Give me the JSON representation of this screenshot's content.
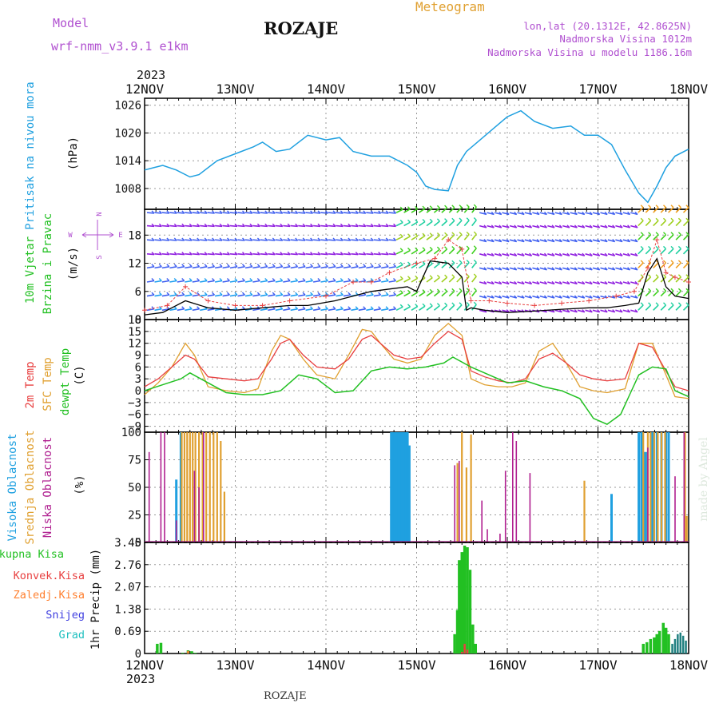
{
  "header": {
    "model_label": "Model",
    "model_value": "wrf-nmm_v3.9.1 e1km",
    "station_title": "ROZAJE",
    "meteogram_label": "Meteogram",
    "lonlat": "lon,lat (20.1312E, 42.8625N)",
    "elevation": "Nadmorska Visina 1012m",
    "model_elevation": "Nadmorska Visina u modelu 1186.16m"
  },
  "footer": {
    "station": "ROZAJE",
    "credit": "made by Angel"
  },
  "colors": {
    "pressure": "#1fa0e0",
    "temp2m": "#e84040",
    "sfc_temp": "#e0a030",
    "dewpoint": "#22c022",
    "cloud_high": "#1fa0e0",
    "cloud_mid": "#e0a030",
    "cloud_low": "#b02090",
    "precip_total": "#22c022",
    "precip_conv": "#e84040",
    "precip_frozen": "#ff8030",
    "precip_snow": "#4040e0",
    "precip_hail": "#20c0c0",
    "label_model": "#b050d0",
    "label_meteogram": "#e0a030"
  },
  "chart_data": [
    {
      "type": "line",
      "id": "pressure",
      "ylabel_left": "Pritisak na nivou mora",
      "ylabel_unit": "(hPa)",
      "year": "2023",
      "x_ticks": [
        "12NOV",
        "13NOV",
        "14NOV",
        "15NOV",
        "16NOV",
        "17NOV",
        "18NOV"
      ],
      "yticks": [
        1008,
        1014,
        1020,
        1026
      ],
      "ylim": [
        1003.5,
        1027.5
      ],
      "xlim": [
        0,
        6
      ],
      "series": [
        {
          "x": [
            0,
            0.1,
            0.2,
            0.35,
            0.5,
            0.6,
            0.8,
            1.0,
            1.2,
            1.3,
            1.45,
            1.6,
            1.8,
            2.0,
            2.15,
            2.3,
            2.5,
            2.7,
            2.9,
            3.0,
            3.1,
            3.2,
            3.35,
            3.45,
            3.55,
            3.7,
            3.85,
            4.0,
            4.15,
            4.3,
            4.5,
            4.7,
            4.85,
            5.0,
            5.15,
            5.3,
            5.45,
            5.55,
            5.65,
            5.75,
            5.85,
            6.0
          ],
          "values": [
            1012,
            1012.5,
            1013,
            1012,
            1010.5,
            1011,
            1014,
            1015.5,
            1017,
            1018,
            1016,
            1016.5,
            1019.5,
            1018.5,
            1019,
            1016,
            1015,
            1015,
            1013,
            1011.5,
            1008.5,
            1007.8,
            1007.5,
            1013,
            1016,
            1018.5,
            1021,
            1023.5,
            1024.8,
            1022.5,
            1021,
            1021.5,
            1019.5,
            1019.5,
            1017.5,
            1012,
            1007,
            1005,
            1008.5,
            1012.5,
            1015,
            1016.5
          ]
        }
      ]
    },
    {
      "type": "line",
      "id": "wind",
      "ylabel_left": "10m Vjetar",
      "ylabel_left2": "Brzina i Pravac",
      "ylabel_unit": "(m/s)",
      "compass": [
        "N",
        "W",
        "E",
        "S"
      ],
      "yticks": [
        0,
        6,
        12,
        18
      ],
      "ylim": [
        0,
        23.5
      ],
      "xlim": [
        0,
        6
      ],
      "series": [
        {
          "name": "speed",
          "x": [
            0,
            0.2,
            0.45,
            0.7,
            1.0,
            1.3,
            1.6,
            1.8,
            2.1,
            2.3,
            2.5,
            2.7,
            2.9,
            3.0,
            3.15,
            3.35,
            3.5,
            3.55,
            3.6,
            3.75,
            4.0,
            4.3,
            4.6,
            4.9,
            5.1,
            5.3,
            5.45,
            5.55,
            5.65,
            5.75,
            5.85,
            6.0
          ],
          "values": [
            1,
            1.5,
            4,
            2.5,
            2,
            2.5,
            3,
            3,
            4,
            5,
            6,
            6.5,
            7,
            6,
            12.5,
            12,
            9,
            2,
            2.5,
            2,
            1.5,
            1.8,
            2.2,
            2.5,
            2.5,
            3,
            3.5,
            10,
            13,
            7,
            5,
            4.5
          ]
        },
        {
          "name": "gust",
          "x": [
            0,
            0.25,
            0.45,
            0.7,
            1.0,
            1.3,
            1.6,
            2.0,
            2.3,
            2.5,
            2.7,
            3.0,
            3.2,
            3.35,
            3.5,
            3.6,
            3.8,
            4.0,
            4.3,
            4.6,
            4.9,
            5.2,
            5.4,
            5.55,
            5.65,
            5.75,
            5.85,
            6.0
          ],
          "values": [
            2,
            3,
            7,
            4,
            3,
            3,
            4,
            5,
            8,
            8,
            10,
            12,
            13,
            17,
            15,
            4,
            4,
            3.5,
            3,
            3.5,
            4,
            5,
            6,
            11,
            17,
            10,
            9,
            8
          ]
        }
      ]
    },
    {
      "type": "line",
      "id": "temperature",
      "ylabel_left": "2m Temp",
      "ylabel_left2": "SFC Temp",
      "ylabel_left3": "dewpt Temp",
      "ylabel_unit": "(C)",
      "yticks": [
        -9,
        -6,
        -3,
        0,
        3,
        6,
        9,
        12,
        15,
        18
      ],
      "ylim": [
        -10.5,
        18
      ],
      "xlim": [
        0,
        6
      ],
      "series": [
        {
          "name": "2m Temp",
          "x": [
            0,
            0.15,
            0.3,
            0.45,
            0.55,
            0.7,
            0.9,
            1.1,
            1.25,
            1.4,
            1.5,
            1.6,
            1.75,
            1.9,
            2.1,
            2.25,
            2.4,
            2.5,
            2.6,
            2.75,
            2.9,
            3.05,
            3.2,
            3.35,
            3.5,
            3.6,
            3.75,
            3.9,
            4.05,
            4.2,
            4.35,
            4.5,
            4.65,
            4.8,
            4.95,
            5.1,
            5.3,
            5.45,
            5.6,
            5.75,
            5.85,
            6.0
          ],
          "values": [
            1,
            3,
            6,
            9,
            8,
            3.5,
            3,
            2.5,
            3,
            8,
            12,
            13,
            9,
            6,
            5.5,
            8,
            13,
            14,
            12,
            9,
            8,
            8.5,
            12,
            15,
            13,
            5,
            3.5,
            2.5,
            2,
            3,
            8,
            9.5,
            7,
            4,
            3,
            2.5,
            3,
            12,
            11,
            5,
            1,
            0
          ]
        },
        {
          "name": "SFC Temp",
          "x": [
            0,
            0.15,
            0.3,
            0.45,
            0.55,
            0.7,
            0.9,
            1.1,
            1.25,
            1.4,
            1.5,
            1.6,
            1.75,
            1.9,
            2.1,
            2.25,
            2.4,
            2.5,
            2.6,
            2.75,
            2.9,
            3.05,
            3.2,
            3.35,
            3.5,
            3.6,
            3.75,
            3.9,
            4.05,
            4.2,
            4.35,
            4.5,
            4.65,
            4.8,
            4.95,
            5.1,
            5.3,
            5.45,
            5.6,
            5.75,
            5.85,
            6.0
          ],
          "values": [
            -1,
            2,
            6,
            12,
            9,
            1,
            0,
            -0.5,
            0.5,
            10,
            14,
            13,
            8,
            4,
            3,
            9,
            15.5,
            15,
            12,
            8,
            7,
            8,
            14,
            17,
            14,
            3,
            1.5,
            1,
            1,
            2,
            10,
            12,
            7,
            1,
            0,
            -0.5,
            0.5,
            12,
            12,
            4,
            -1.5,
            -2
          ]
        },
        {
          "name": "dewpt Temp",
          "x": [
            0,
            0.2,
            0.4,
            0.5,
            0.7,
            0.9,
            1.1,
            1.3,
            1.5,
            1.7,
            1.9,
            2.1,
            2.3,
            2.5,
            2.7,
            2.9,
            3.1,
            3.3,
            3.4,
            3.6,
            3.8,
            4.0,
            4.2,
            4.4,
            4.6,
            4.8,
            4.95,
            5.1,
            5.25,
            5.35,
            5.45,
            5.6,
            5.75,
            5.85,
            6.0
          ],
          "values": [
            0,
            1.5,
            3,
            4.5,
            2,
            -0.5,
            -1,
            -1,
            0,
            4,
            3,
            -0.5,
            0,
            5,
            6,
            5.5,
            6,
            7,
            8.5,
            6,
            4,
            2,
            2.5,
            1,
            0,
            -2,
            -7,
            -8.5,
            -6,
            -1,
            4,
            6,
            5.5,
            0,
            -1.5
          ]
        }
      ]
    },
    {
      "type": "bar",
      "id": "clouds",
      "ylabel_left": "Visoka Oblacnost",
      "ylabel_left2": "Srednja Oblacnost",
      "ylabel_left3": "Niska Oblacnost",
      "ylabel_unit": "(%)",
      "yticks": [
        0,
        25,
        50,
        75,
        100
      ],
      "ylim": [
        0,
        100
      ],
      "xlim": [
        0,
        6
      ],
      "series": [
        {
          "name": "Visoka Oblacnost",
          "x": [
            0.35,
            0.4,
            2.72,
            2.74,
            2.76,
            2.78,
            2.8,
            2.82,
            2.84,
            2.86,
            2.88,
            2.9,
            2.92,
            5.15,
            5.45,
            5.48,
            5.5,
            5.52,
            5.54,
            5.6,
            5.65,
            5.7,
            5.75,
            5.78
          ],
          "values": [
            57,
            100,
            100,
            100,
            100,
            100,
            100,
            100,
            100,
            100,
            100,
            100,
            88,
            44,
            100,
            100,
            82,
            82,
            82,
            100,
            100,
            100,
            100,
            100
          ]
        },
        {
          "name": "Srednja Oblacnost",
          "x": [
            0.41,
            0.44,
            0.47,
            0.5,
            0.53,
            0.56,
            0.6,
            0.64,
            0.68,
            0.72,
            0.76,
            0.8,
            0.84,
            0.88,
            3.45,
            3.5,
            3.55,
            3.6,
            4.85,
            5.5,
            5.55,
            5.58,
            5.62,
            5.66,
            5.7,
            5.74,
            5.96,
            5.98
          ],
          "values": [
            100,
            100,
            100,
            100,
            100,
            100,
            100,
            100,
            100,
            100,
            100,
            100,
            92,
            46,
            72,
            100,
            68,
            98,
            56,
            100,
            100,
            100,
            100,
            100,
            100,
            100,
            100,
            24
          ]
        },
        {
          "name": "Niska Oblacnost",
          "x": [
            0.05,
            0.18,
            0.22,
            0.35,
            0.55,
            0.6,
            0.65,
            3.42,
            3.47,
            3.72,
            3.78,
            3.92,
            3.98,
            4.06,
            4.1,
            4.25,
            5.55,
            5.85,
            5.95
          ],
          "values": [
            82,
            100,
            100,
            20,
            65,
            50,
            100,
            70,
            74,
            38,
            12,
            8,
            65,
            100,
            92,
            63,
            86,
            60,
            100
          ]
        }
      ]
    },
    {
      "type": "bar",
      "id": "precip",
      "ylabel_unit": "1hr Precip (mm)",
      "legend": [
        "Ukupna Kisa",
        "Konvek.Kisa",
        "Zaledj.Kisa",
        "Snijeg",
        "Grad"
      ],
      "yticks": [
        0,
        0.69,
        1.38,
        2.07,
        2.76,
        3.45
      ],
      "ylim": [
        0,
        3.45
      ],
      "xlim": [
        0,
        6
      ],
      "x_ticks": [
        "12NOV",
        "13NOV",
        "14NOV",
        "15NOV",
        "16NOV",
        "17NOV",
        "18NOV"
      ],
      "year": "2023",
      "series": [
        {
          "name": "Ukupna Kisa",
          "x": [
            0.14,
            0.18,
            0.42,
            0.48,
            0.52,
            0.56,
            3.42,
            3.45,
            3.47,
            3.5,
            3.53,
            3.56,
            3.59,
            3.62,
            3.65,
            5.5,
            5.54,
            5.58,
            5.62,
            5.65,
            5.68,
            5.72,
            5.75,
            5.78
          ],
          "values": [
            0.3,
            0.33,
            0.02,
            0.1,
            0.07,
            0.02,
            0.6,
            1.35,
            2.9,
            3.15,
            3.35,
            3.3,
            2.6,
            0.9,
            0.3,
            0.3,
            0.35,
            0.45,
            0.5,
            0.6,
            0.7,
            0.95,
            0.8,
            0.6
          ]
        },
        {
          "name": "Konvek.Kisa",
          "x": [
            3.5,
            3.53,
            3.56
          ],
          "values": [
            0.05,
            0.3,
            0.12
          ]
        },
        {
          "name": "Zaledj.Kisa",
          "x": [
            0.48
          ],
          "values": [
            0.08
          ]
        },
        {
          "name": "Grad",
          "x": [
            5.82,
            5.85,
            5.88,
            5.91,
            5.94,
            5.97
          ],
          "values": [
            0.3,
            0.45,
            0.6,
            0.65,
            0.55,
            0.4
          ]
        }
      ]
    }
  ]
}
